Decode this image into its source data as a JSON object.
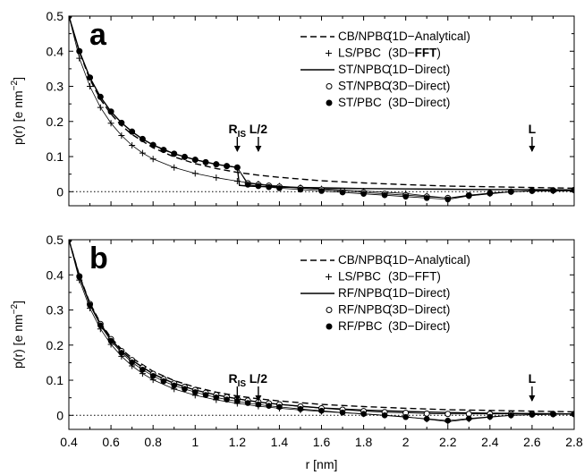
{
  "chart_data": [
    {
      "type": "line",
      "panel_label": "a",
      "xlabel": "",
      "ylabel": "p(r) [e nm",
      "ylabel_sup": "−2",
      "ylabel_close": "]",
      "xlim": [
        0.4,
        2.8
      ],
      "ylim": [
        -0.04,
        0.5
      ],
      "y_ticks": [
        "0",
        "0.1",
        "0.2",
        "0.3",
        "0.4",
        "0.5"
      ],
      "x_ticks": [],
      "reference_line": {
        "y": 0,
        "style": "dotted"
      },
      "legend": [
        {
          "name": "CB/NPBC",
          "method": "(1D−Analytical)",
          "marker": "dashed"
        },
        {
          "name": "LS/PBC",
          "method": "(3D−FFT)",
          "marker": "plus",
          "method_bold_part": "FFT"
        },
        {
          "name": "ST/NPBC",
          "method": "(1D−Direct)",
          "marker": "solid"
        },
        {
          "name": "ST/NPBC",
          "method": "(3D−Direct)",
          "marker": "open-circle"
        },
        {
          "name": "ST/PBC",
          "method": "(3D−Direct)",
          "marker": "filled-circle"
        }
      ],
      "annotations": [
        {
          "label": "R",
          "sub": "IS",
          "x": 1.2
        },
        {
          "label": "L/2",
          "x": 1.3
        },
        {
          "label": "L",
          "x": 2.6
        }
      ],
      "series": [
        {
          "name": "CB/NPBC (1D−Analytical)",
          "style": "dashed",
          "x": [
            0.4,
            0.45,
            0.5,
            0.55,
            0.6,
            0.65,
            0.7,
            0.8,
            0.9,
            1.0,
            1.1,
            1.2,
            1.3,
            1.4,
            1.6,
            1.8,
            2.0,
            2.2,
            2.4,
            2.6,
            2.8
          ],
          "y": [
            0.5,
            0.398,
            0.32,
            0.263,
            0.221,
            0.188,
            0.163,
            0.125,
            0.099,
            0.08,
            0.066,
            0.055,
            0.047,
            0.041,
            0.031,
            0.025,
            0.02,
            0.016,
            0.014,
            0.012,
            0.01
          ]
        },
        {
          "name": "LS/PBC (3D−FFT)",
          "style": "plus",
          "x": [
            0.4,
            0.45,
            0.5,
            0.55,
            0.6,
            0.65,
            0.7,
            0.75,
            0.8,
            0.9,
            1.0,
            1.1,
            1.2,
            1.3,
            1.4,
            1.5,
            1.6,
            1.8,
            2.0,
            2.1,
            2.2,
            2.3,
            2.4,
            2.5,
            2.6,
            2.7,
            2.8
          ],
          "y": [
            0.5,
            0.38,
            0.3,
            0.24,
            0.195,
            0.16,
            0.132,
            0.11,
            0.093,
            0.069,
            0.052,
            0.04,
            0.03,
            0.022,
            0.016,
            0.012,
            0.008,
            0.002,
            -0.005,
            -0.012,
            -0.018,
            -0.012,
            -0.006,
            0.0,
            0.002,
            0.002,
            0.002
          ]
        },
        {
          "name": "ST/NPBC (1D−Direct)",
          "style": "solid",
          "x": [
            0.4,
            0.45,
            0.5,
            0.55,
            0.6,
            0.65,
            0.7,
            0.75,
            0.8,
            0.9,
            1.0,
            1.1,
            1.2,
            1.21,
            1.25,
            1.3,
            1.4,
            1.5,
            1.6,
            1.8,
            2.0,
            2.2,
            2.4,
            2.6,
            2.8
          ],
          "y": [
            0.5,
            0.4,
            0.325,
            0.27,
            0.228,
            0.196,
            0.171,
            0.15,
            0.133,
            0.108,
            0.091,
            0.078,
            0.069,
            0.018,
            0.016,
            0.015,
            0.013,
            0.012,
            0.011,
            0.009,
            0.008,
            0.007,
            0.006,
            0.006,
            0.005
          ]
        },
        {
          "name": "ST/NPBC (3D−Direct)",
          "style": "open-circle",
          "x": [
            0.4,
            0.45,
            0.5,
            0.55,
            0.6,
            0.65,
            0.7,
            0.75,
            0.8,
            0.85,
            0.9,
            0.95,
            1.0,
            1.05,
            1.1,
            1.15,
            1.2,
            1.25,
            1.3,
            1.35,
            1.4,
            1.5,
            1.6,
            1.7,
            1.8,
            1.9,
            2.0,
            2.1,
            2.2,
            2.3,
            2.4,
            2.5,
            2.6,
            2.7,
            2.8
          ],
          "y": [
            0.5,
            0.4,
            0.325,
            0.27,
            0.228,
            0.196,
            0.171,
            0.15,
            0.133,
            0.119,
            0.108,
            0.099,
            0.091,
            0.084,
            0.078,
            0.073,
            0.069,
            0.024,
            0.02,
            0.017,
            0.014,
            0.01,
            0.006,
            0.002,
            -0.002,
            -0.006,
            -0.01,
            -0.014,
            -0.018,
            -0.01,
            -0.004,
            0.0,
            0.003,
            0.004,
            0.005
          ]
        },
        {
          "name": "ST/PBC (3D−Direct)",
          "style": "filled-circle",
          "x": [
            0.4,
            0.45,
            0.5,
            0.55,
            0.6,
            0.65,
            0.7,
            0.75,
            0.8,
            0.85,
            0.9,
            0.95,
            1.0,
            1.05,
            1.1,
            1.15,
            1.2,
            1.25,
            1.3,
            1.35,
            1.4,
            1.5,
            1.6,
            1.7,
            1.8,
            1.9,
            2.0,
            2.1,
            2.2,
            2.3,
            2.4,
            2.5,
            2.6,
            2.7,
            2.8
          ],
          "y": [
            0.5,
            0.4,
            0.325,
            0.27,
            0.228,
            0.196,
            0.171,
            0.15,
            0.133,
            0.119,
            0.108,
            0.099,
            0.091,
            0.084,
            0.078,
            0.073,
            0.069,
            0.02,
            0.016,
            0.013,
            0.01,
            0.006,
            0.002,
            -0.002,
            -0.006,
            -0.01,
            -0.014,
            -0.018,
            -0.022,
            -0.012,
            -0.005,
            0.0,
            0.002,
            0.003,
            0.004
          ]
        }
      ]
    },
    {
      "type": "line",
      "panel_label": "b",
      "xlabel": "r [nm]",
      "ylabel": "p(r) [e nm",
      "ylabel_sup": "−2",
      "ylabel_close": "]",
      "xlim": [
        0.4,
        2.8
      ],
      "ylim": [
        -0.04,
        0.5
      ],
      "y_ticks": [
        "0",
        "0.1",
        "0.2",
        "0.3",
        "0.4",
        "0.5"
      ],
      "x_ticks": [
        "0.4",
        "0.6",
        "0.8",
        "1",
        "1.2",
        "1.4",
        "1.6",
        "1.8",
        "2",
        "2.2",
        "2.4",
        "2.6",
        "2.8"
      ],
      "reference_line": {
        "y": 0,
        "style": "dotted"
      },
      "legend": [
        {
          "name": "CB/NPBC",
          "method": "(1D−Analytical)",
          "marker": "dashed"
        },
        {
          "name": "LS/PBC",
          "method": "(3D−FFT)",
          "marker": "plus"
        },
        {
          "name": "RF/NPBC",
          "method": "(1D−Direct)",
          "marker": "solid"
        },
        {
          "name": "RF/NPBC",
          "method": "(3D−Direct)",
          "marker": "open-circle"
        },
        {
          "name": "RF/PBC",
          "method": "(3D−Direct)",
          "marker": "filled-circle"
        }
      ],
      "annotations": [
        {
          "label": "R",
          "sub": "IS",
          "x": 1.2
        },
        {
          "label": "L/2",
          "x": 1.3
        },
        {
          "label": "L",
          "x": 2.6
        }
      ],
      "series": [
        {
          "name": "CB/NPBC (1D−Analytical)",
          "style": "dashed",
          "x": [
            0.4,
            0.45,
            0.5,
            0.55,
            0.6,
            0.65,
            0.7,
            0.8,
            0.9,
            1.0,
            1.1,
            1.2,
            1.3,
            1.4,
            1.6,
            1.8,
            2.0,
            2.2,
            2.4,
            2.6,
            2.8
          ],
          "y": [
            0.5,
            0.398,
            0.32,
            0.263,
            0.221,
            0.188,
            0.163,
            0.125,
            0.099,
            0.08,
            0.066,
            0.055,
            0.047,
            0.041,
            0.031,
            0.025,
            0.02,
            0.016,
            0.014,
            0.012,
            0.01
          ]
        },
        {
          "name": "LS/PBC (3D−FFT)",
          "style": "plus",
          "x": [
            0.4,
            0.45,
            0.5,
            0.55,
            0.6,
            0.65,
            0.7,
            0.75,
            0.8,
            0.9,
            1.0,
            1.1,
            1.2,
            1.3,
            1.4,
            1.5,
            1.6,
            1.8,
            2.0,
            2.1,
            2.2,
            2.3,
            2.4,
            2.5,
            2.6,
            2.7,
            2.8
          ],
          "y": [
            0.5,
            0.385,
            0.305,
            0.246,
            0.202,
            0.168,
            0.141,
            0.119,
            0.101,
            0.075,
            0.057,
            0.044,
            0.034,
            0.026,
            0.02,
            0.015,
            0.011,
            0.004,
            -0.004,
            -0.011,
            -0.018,
            -0.011,
            -0.005,
            0.0,
            0.002,
            0.003,
            0.003
          ]
        },
        {
          "name": "RF/NPBC (1D−Direct)",
          "style": "solid",
          "x": [
            0.4,
            0.45,
            0.5,
            0.55,
            0.6,
            0.65,
            0.7,
            0.8,
            0.9,
            1.0,
            1.1,
            1.2,
            1.3,
            1.4,
            1.6,
            1.8,
            2.0,
            2.2,
            2.4,
            2.6,
            2.8
          ],
          "y": [
            0.5,
            0.396,
            0.317,
            0.26,
            0.217,
            0.183,
            0.157,
            0.118,
            0.091,
            0.072,
            0.058,
            0.047,
            0.038,
            0.031,
            0.021,
            0.015,
            0.011,
            0.008,
            0.006,
            0.005,
            0.004
          ]
        },
        {
          "name": "RF/NPBC (3D−Direct)",
          "style": "open-circle",
          "x": [
            0.4,
            0.45,
            0.5,
            0.55,
            0.6,
            0.65,
            0.7,
            0.75,
            0.8,
            0.85,
            0.9,
            0.95,
            1.0,
            1.05,
            1.1,
            1.15,
            1.2,
            1.25,
            1.3,
            1.35,
            1.4,
            1.5,
            1.6,
            1.7,
            1.8,
            1.9,
            2.0,
            2.1,
            2.2,
            2.3,
            2.4,
            2.5,
            2.6,
            2.7,
            2.8
          ],
          "y": [
            0.5,
            0.396,
            0.317,
            0.26,
            0.217,
            0.183,
            0.157,
            0.136,
            0.118,
            0.103,
            0.091,
            0.081,
            0.072,
            0.064,
            0.058,
            0.052,
            0.047,
            0.042,
            0.038,
            0.034,
            0.031,
            0.025,
            0.02,
            0.016,
            0.012,
            0.009,
            0.007,
            0.005,
            0.004,
            0.004,
            0.004,
            0.004,
            0.004,
            0.004,
            0.004
          ]
        },
        {
          "name": "RF/PBC (3D−Direct)",
          "style": "filled-circle",
          "x": [
            0.4,
            0.45,
            0.5,
            0.55,
            0.6,
            0.65,
            0.7,
            0.75,
            0.8,
            0.85,
            0.9,
            0.95,
            1.0,
            1.05,
            1.1,
            1.15,
            1.2,
            1.25,
            1.3,
            1.35,
            1.4,
            1.5,
            1.6,
            1.7,
            1.8,
            1.9,
            2.0,
            2.1,
            2.2,
            2.3,
            2.4,
            2.5,
            2.6,
            2.7,
            2.8
          ],
          "y": [
            0.5,
            0.394,
            0.314,
            0.256,
            0.212,
            0.178,
            0.151,
            0.13,
            0.112,
            0.097,
            0.085,
            0.075,
            0.066,
            0.058,
            0.051,
            0.045,
            0.04,
            0.035,
            0.031,
            0.027,
            0.024,
            0.018,
            0.013,
            0.008,
            0.004,
            0.0,
            -0.005,
            -0.01,
            -0.015,
            -0.009,
            -0.004,
            0.0,
            0.002,
            0.003,
            0.003
          ]
        }
      ]
    }
  ]
}
